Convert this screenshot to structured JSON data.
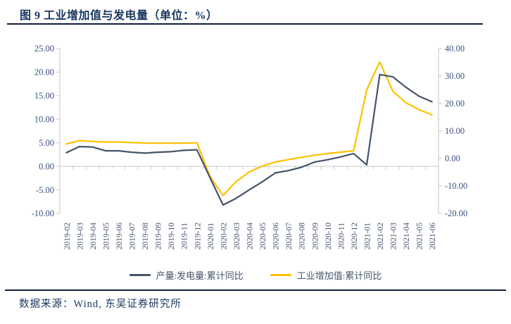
{
  "header": {
    "title": "图 9 工业增加值与发电量（单位：%）"
  },
  "footer": {
    "source": "数据来源：Wind, 东吴证券研究所"
  },
  "colors": {
    "title_navy": "#17375E",
    "series_navy": "#44546A",
    "series_gold": "#FFC000",
    "axis_line_gray": "#C6C6C6",
    "axis_label_blue": "#3A5080",
    "x_label_gray_blue": "#44546A",
    "divider_dark": "#101F3C"
  },
  "chart_data": {
    "type": "line",
    "title": "图 9 工业增加值与发电量（单位：%）",
    "unit": "%",
    "grid": false,
    "legend_position": "bottom",
    "x": [
      "2019-02",
      "2019-03",
      "2019-04",
      "2019-05",
      "2019-06",
      "2019-07",
      "2019-08",
      "2019-09",
      "2019-10",
      "2019-11",
      "2019-12",
      "2020-01",
      "2020-02",
      "2020-03",
      "2020-04",
      "2020-05",
      "2020-06",
      "2020-07",
      "2020-08",
      "2020-09",
      "2020-10",
      "2020-11",
      "2020-12",
      "2021-01",
      "2021-02",
      "2021-03",
      "2021-04",
      "2021-05",
      "2021-06"
    ],
    "series": [
      {
        "name": "产量:发电量:累计同比",
        "axis": "left",
        "color": "#44546A",
        "values": [
          2.9,
          4.2,
          4.1,
          3.3,
          3.3,
          3.0,
          2.8,
          3.0,
          3.1,
          3.4,
          3.5,
          -2.4,
          -8.2,
          -6.8,
          -5.0,
          -3.3,
          -1.4,
          -0.9,
          -0.2,
          0.9,
          1.4,
          2.0,
          2.7,
          0.3,
          19.5,
          19.0,
          16.8,
          14.9,
          13.7
        ]
      },
      {
        "name": "工业增加值:累计同比",
        "axis": "right",
        "color": "#FFC000",
        "values": [
          5.3,
          6.5,
          6.2,
          6.0,
          6.0,
          5.8,
          5.6,
          5.6,
          5.6,
          5.6,
          5.7,
          -6.5,
          -13.5,
          -8.4,
          -4.9,
          -2.8,
          -1.3,
          -0.4,
          0.4,
          1.2,
          1.8,
          2.3,
          2.8,
          25.0,
          35.1,
          24.5,
          20.3,
          17.8,
          15.9
        ]
      }
    ],
    "left_axis": {
      "min": -10,
      "max": 25,
      "step": 5,
      "labels": [
        "25.00",
        "20.00",
        "15.00",
        "10.00",
        "5.00",
        "0.00",
        "-5.00",
        "-10.00"
      ]
    },
    "right_axis": {
      "min": -20,
      "max": 40,
      "step": 10,
      "labels": [
        "40.00",
        "30.00",
        "20.00",
        "10.00",
        "0.00",
        "-10.00",
        "-20.00"
      ]
    }
  }
}
